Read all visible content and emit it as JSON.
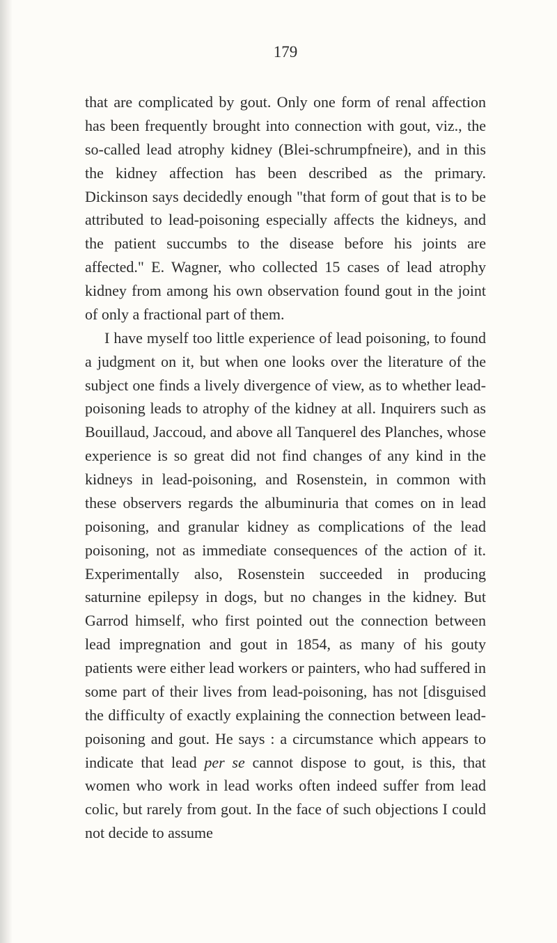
{
  "page_number": "179",
  "paragraphs": [
    {
      "class": "first",
      "text": "that are complicated by gout. Only one form of renal affection has been frequently brought into connection with gout, viz., the so-called lead atrophy kidney (Blei-schrumpfneire), and in this the kidney affection has been described as the primary. Dickinson says decidedly enough \"that form of gout that is to be attributed to lead-poisoning especially affects the kidneys, and the patient succumbs to the disease before his joints are affected.\" E. Wagner, who collected 15 cases of lead atrophy kidney from among his own observation found gout in the joint of only a fractional part of them."
    },
    {
      "class": "second",
      "text": "I have myself too little experience of lead poisoning, to found a judgment on it, but when one looks over the literature of the subject one finds a lively divergence of view, as to whether lead-poisoning leads to atrophy of the kidney at all. Inquirers such as Bouillaud, Jaccoud, and above all Tanquerel des Planches, whose experience is so great did not find changes of any kind in the kidneys in lead-poisoning, and Rosenstein, in common with these observers regards the albuminuria that comes on in lead poisoning, and granular kidney as complications of the lead poisoning, not as immediate consequences of the action of it. Experimentally also, Rosenstein succeeded in producing saturnine epilepsy in dogs, but no changes in the kidney. But Garrod himself, who first pointed out the connection between lead impregnation and gout in 1854, as many of his gouty patients were either lead workers or painters, who had suffered in some part of their lives from lead-poisoning, has not [disguised the difficulty of exactly explaining the connection between lead-poisoning and gout. He says : a circumstance which appears to indicate that lead <i>per se</i> cannot dispose to gout, is this, that women who work in lead works often indeed suffer from lead colic, but rarely from gout. In the face of such objections I could not decide to assume"
    }
  ],
  "colors": {
    "background": "#fdfcf8",
    "text": "#2a2a2a"
  },
  "typography": {
    "body_fontsize": 22,
    "page_number_fontsize": 23,
    "line_height": 1.54,
    "font_family": "Georgia, serif"
  }
}
